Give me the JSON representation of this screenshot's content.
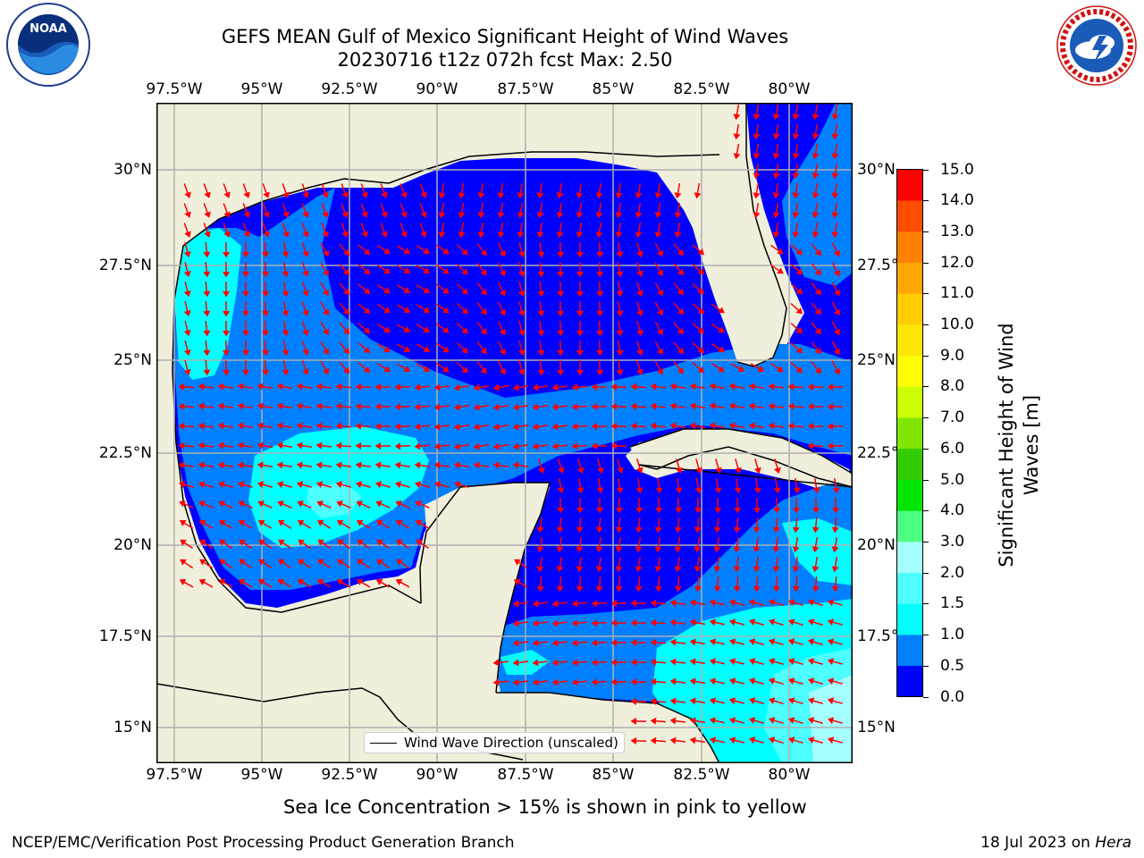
{
  "title_line1": "GEFS MEAN Gulf of Mexico Significant Height of Wind Waves",
  "title_line2": "20230716 t12z 072h fcst   Max: 2.50",
  "lon_ticks": [
    "97.5°W",
    "95°W",
    "92.5°W",
    "90°W",
    "87.5°W",
    "85°W",
    "82.5°W",
    "80°W"
  ],
  "lat_ticks_left": [
    "30°N",
    "27.5°N",
    "25°N",
    "22.5°N",
    "20°N",
    "17.5°N",
    "15°N"
  ],
  "lat_ticks_right": [
    "30°N",
    "27.5°N",
    "25°N",
    "22.5°N",
    "20°N",
    "17.5°N",
    "15°N"
  ],
  "legend_label": "Wind Wave Direction (unscaled)",
  "colorbar": {
    "label_line1": "Significant Height of Wind",
    "label_line2": "Waves [m]",
    "ticks": [
      "0.0",
      "0.5",
      "1.0",
      "1.5",
      "2.0",
      "3.0",
      "4.0",
      "5.0",
      "6.0",
      "7.0",
      "8.0",
      "9.0",
      "10.0",
      "11.0",
      "12.0",
      "13.0",
      "14.0",
      "15.0"
    ],
    "colors": [
      "#0000ff",
      "#0080ff",
      "#00ffff",
      "#4dffff",
      "#a6ffff",
      "#4dff80",
      "#00e600",
      "#33cc00",
      "#80e600",
      "#ccff00",
      "#ffff00",
      "#ffe600",
      "#ffcc00",
      "#ffa600",
      "#ff8000",
      "#ff4d00",
      "#ff0000"
    ]
  },
  "sea_ice_note": "Sea Ice Concentration > 15% is shown in pink to yellow",
  "footer_left": "NCEP/EMC/Verification Post Processing Product Generation Branch",
  "footer_right_date": "18 Jul 2023 on ",
  "footer_right_host": "Hera",
  "logos": {
    "left": "noaa-logo",
    "right": "nws-logo"
  },
  "colors": {
    "land": "#efefdc",
    "coast": "#000000",
    "arrow": "#ff0000",
    "grid": "#b0b0b0"
  }
}
